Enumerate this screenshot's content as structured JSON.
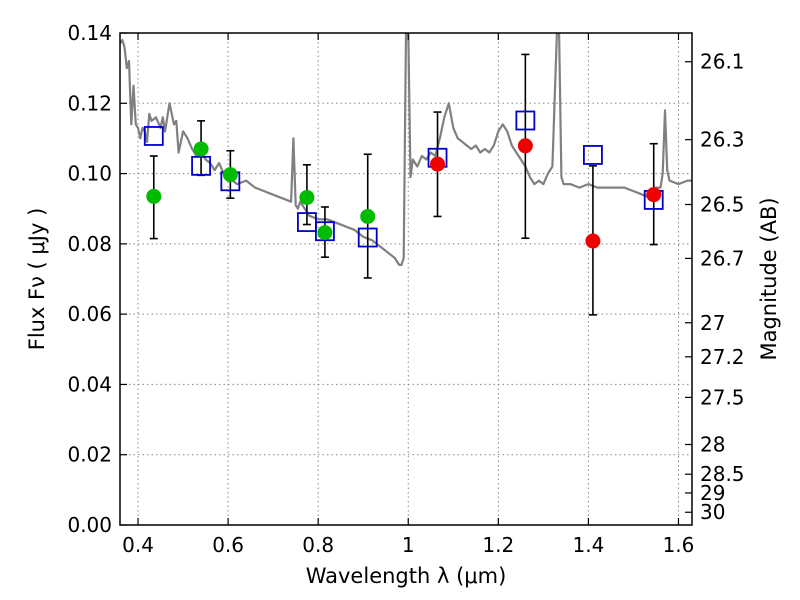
{
  "chart_data": {
    "type": "scatter",
    "title": "",
    "xlabel": "Wavelength  λ (μm)",
    "ylabel": "Flux  Fν  ( μJy )",
    "ylabel_right": "Magnitude (AB)",
    "xlim": [
      0.36,
      1.63
    ],
    "ylim": [
      0.0,
      0.14
    ],
    "grid": true,
    "x_ticks": [
      0.4,
      0.6,
      0.8,
      1.0,
      1.2,
      1.4,
      1.6
    ],
    "x_tick_labels": [
      "0.4",
      "0.6",
      "0.8",
      "1",
      "1.2",
      "1.4",
      "1.6"
    ],
    "y_ticks": [
      0.0,
      0.02,
      0.04,
      0.06,
      0.08,
      0.1,
      0.12,
      0.14
    ],
    "y_tick_labels": [
      "0.00",
      "0.02",
      "0.04",
      "0.06",
      "0.08",
      "0.10",
      "0.12",
      "0.14"
    ],
    "right_ticks": [
      {
        "label": "26.1",
        "mag": 26.1
      },
      {
        "label": "26.3",
        "mag": 26.3
      },
      {
        "label": "26.5",
        "mag": 26.5
      },
      {
        "label": "26.7",
        "mag": 26.7
      },
      {
        "label": "27",
        "mag": 27.0
      },
      {
        "label": "27.2",
        "mag": 27.2
      },
      {
        "label": "27.5",
        "mag": 27.5
      },
      {
        "label": "28",
        "mag": 28.0
      },
      {
        "label": "28.5",
        "mag": 28.5
      },
      {
        "label": "29",
        "mag": 29.0
      },
      {
        "label": "30",
        "mag": 30.0
      }
    ],
    "colors": {
      "model": "#808080",
      "green": "#00bb00",
      "red": "#ee0000",
      "square": "#0000cc",
      "errorbar": "#000000"
    },
    "model_spectrum": {
      "name": "model SED",
      "x": [
        0.36,
        0.365,
        0.37,
        0.375,
        0.38,
        0.385,
        0.39,
        0.395,
        0.4,
        0.405,
        0.41,
        0.415,
        0.42,
        0.425,
        0.43,
        0.44,
        0.45,
        0.455,
        0.46,
        0.47,
        0.48,
        0.485,
        0.49,
        0.5,
        0.51,
        0.52,
        0.53,
        0.54,
        0.55,
        0.56,
        0.57,
        0.58,
        0.59,
        0.6,
        0.62,
        0.64,
        0.66,
        0.68,
        0.7,
        0.72,
        0.74,
        0.745,
        0.75,
        0.755,
        0.76,
        0.78,
        0.8,
        0.82,
        0.84,
        0.86,
        0.88,
        0.9,
        0.92,
        0.94,
        0.96,
        0.97,
        0.98,
        0.985,
        0.99,
        0.995,
        1.0,
        1.005,
        1.01,
        1.02,
        1.03,
        1.04,
        1.05,
        1.06,
        1.07,
        1.08,
        1.09,
        1.1,
        1.11,
        1.12,
        1.13,
        1.14,
        1.15,
        1.16,
        1.17,
        1.18,
        1.19,
        1.2,
        1.21,
        1.22,
        1.23,
        1.24,
        1.25,
        1.26,
        1.27,
        1.28,
        1.29,
        1.3,
        1.31,
        1.32,
        1.33,
        1.335,
        1.34,
        1.345,
        1.35,
        1.36,
        1.38,
        1.4,
        1.42,
        1.44,
        1.46,
        1.48,
        1.5,
        1.52,
        1.54,
        1.55,
        1.56,
        1.565,
        1.57,
        1.575,
        1.58,
        1.6,
        1.62,
        1.63
      ],
      "y": [
        0.137,
        0.138,
        0.136,
        0.13,
        0.132,
        0.114,
        0.125,
        0.114,
        0.113,
        0.11,
        0.113,
        0.112,
        0.109,
        0.117,
        0.115,
        0.116,
        0.113,
        0.116,
        0.112,
        0.12,
        0.114,
        0.115,
        0.106,
        0.112,
        0.11,
        0.107,
        0.105,
        0.106,
        0.104,
        0.103,
        0.101,
        0.103,
        0.1,
        0.099,
        0.097,
        0.098,
        0.096,
        0.095,
        0.094,
        0.093,
        0.092,
        0.11,
        0.091,
        0.09,
        0.092,
        0.088,
        0.087,
        0.087,
        0.086,
        0.085,
        0.084,
        0.082,
        0.081,
        0.079,
        0.077,
        0.076,
        0.074,
        0.074,
        0.076,
        0.14,
        0.14,
        0.099,
        0.104,
        0.102,
        0.105,
        0.104,
        0.106,
        0.105,
        0.11,
        0.116,
        0.12,
        0.113,
        0.11,
        0.109,
        0.108,
        0.107,
        0.108,
        0.106,
        0.107,
        0.106,
        0.108,
        0.112,
        0.114,
        0.112,
        0.108,
        0.106,
        0.104,
        0.102,
        0.099,
        0.097,
        0.098,
        0.097,
        0.1,
        0.102,
        0.14,
        0.14,
        0.099,
        0.097,
        0.097,
        0.097,
        0.096,
        0.097,
        0.096,
        0.096,
        0.096,
        0.096,
        0.095,
        0.094,
        0.093,
        0.096,
        0.096,
        0.1,
        0.118,
        0.101,
        0.098,
        0.097,
        0.098,
        0.098
      ]
    },
    "series": [
      {
        "name": "green points",
        "marker": "circle",
        "color": "#00bb00",
        "x": [
          0.435,
          0.54,
          0.605,
          0.775,
          0.815,
          0.91
        ],
        "y": [
          0.0935,
          0.107,
          0.0997,
          0.0932,
          0.0832,
          0.0878
        ],
        "err_low": [
          0.0815,
          0.0995,
          0.093,
          0.0855,
          0.0762,
          0.0703
        ],
        "err_high": [
          0.105,
          0.115,
          0.1065,
          0.1025,
          0.0905,
          0.1055
        ]
      },
      {
        "name": "red points",
        "marker": "circle",
        "color": "#ee0000",
        "x": [
          1.065,
          1.26,
          1.41,
          1.545
        ],
        "y": [
          0.1027,
          0.1079,
          0.0808,
          0.094
        ],
        "err_low": [
          0.0878,
          0.0816,
          0.0598,
          0.0798
        ],
        "err_high": [
          0.1175,
          0.1339,
          0.1022,
          0.1085
        ]
      },
      {
        "name": "blue squares",
        "marker": "square",
        "color": "#0000cc",
        "x": [
          0.435,
          0.54,
          0.605,
          0.775,
          0.815,
          0.91,
          1.065,
          1.26,
          1.41,
          1.545
        ],
        "y": [
          0.1107,
          0.1022,
          0.0978,
          0.0862,
          0.0836,
          0.0818,
          0.1045,
          0.1151,
          0.1053,
          0.0925
        ]
      }
    ]
  }
}
